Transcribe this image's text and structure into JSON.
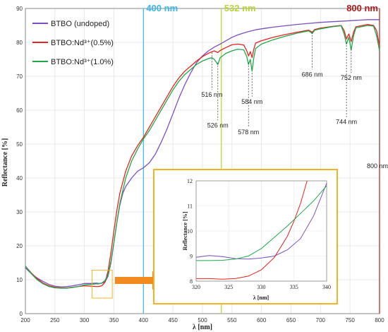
{
  "chart_data": [
    {
      "type": "line",
      "xlabel": "λ [nm]",
      "ylabel": "Reflectance [%]",
      "xlim": [
        200,
        800
      ],
      "ylim": [
        0,
        90
      ],
      "xticks": [
        200,
        250,
        300,
        350,
        400,
        450,
        500,
        550,
        600,
        650,
        700,
        750,
        800
      ],
      "yticks": [
        0,
        10,
        20,
        30,
        40,
        50,
        60,
        70,
        80,
        90
      ],
      "grid": true,
      "legend_position": "top-left",
      "series": [
        {
          "name": "BTBO (undoped)",
          "color": "#7b4fc0",
          "points": [
            [
              200,
              13.5
            ],
            [
              210,
              11.8
            ],
            [
              220,
              10.5
            ],
            [
              230,
              9.5
            ],
            [
              240,
              8.6
            ],
            [
              250,
              8.1
            ],
            [
              260,
              7.9
            ],
            [
              270,
              8.0
            ],
            [
              280,
              8.2
            ],
            [
              290,
              8.5
            ],
            [
              300,
              8.9
            ],
            [
              310,
              8.9
            ],
            [
              320,
              9.0
            ],
            [
              325,
              8.9
            ],
            [
              330,
              9.0
            ],
            [
              335,
              9.4
            ],
            [
              340,
              11.0
            ],
            [
              345,
              15.0
            ],
            [
              350,
              21.0
            ],
            [
              355,
              27.0
            ],
            [
              360,
              32.0
            ],
            [
              365,
              35.5
            ],
            [
              370,
              37.5
            ],
            [
              380,
              40.0
            ],
            [
              390,
              42.0
            ],
            [
              400,
              43.0
            ],
            [
              410,
              44.5
            ],
            [
              420,
              47.0
            ],
            [
              430,
              50.5
            ],
            [
              440,
              54.5
            ],
            [
              450,
              59.0
            ],
            [
              460,
              63.5
            ],
            [
              470,
              67.5
            ],
            [
              480,
              71.0
            ],
            [
              490,
              74.0
            ],
            [
              500,
              76.0
            ],
            [
              510,
              77.5
            ],
            [
              520,
              78.6
            ],
            [
              530,
              79.5
            ],
            [
              540,
              80.5
            ],
            [
              550,
              81.5
            ],
            [
              560,
              82.2
            ],
            [
              570,
              82.8
            ],
            [
              580,
              83.3
            ],
            [
              590,
              83.7
            ],
            [
              600,
              84.0
            ],
            [
              620,
              84.5
            ],
            [
              640,
              84.9
            ],
            [
              660,
              85.3
            ],
            [
              680,
              85.6
            ],
            [
              700,
              85.9
            ],
            [
              720,
              86.1
            ],
            [
              740,
              86.3
            ],
            [
              760,
              86.5
            ],
            [
              780,
              86.7
            ],
            [
              800,
              86.7
            ]
          ]
        },
        {
          "name": "BTBO:Nd³⁺(0.5%)",
          "color": "#e8231f",
          "points": [
            [
              200,
              14.0
            ],
            [
              210,
              12.0
            ],
            [
              220,
              10.3
            ],
            [
              230,
              9.0
            ],
            [
              240,
              8.2
            ],
            [
              250,
              7.8
            ],
            [
              260,
              7.6
            ],
            [
              270,
              7.6
            ],
            [
              280,
              7.8
            ],
            [
              290,
              8.0
            ],
            [
              300,
              8.2
            ],
            [
              310,
              8.1
            ],
            [
              320,
              8.0
            ],
            [
              325,
              8.0
            ],
            [
              330,
              8.3
            ],
            [
              335,
              9.3
            ],
            [
              340,
              12.5
            ],
            [
              345,
              18.0
            ],
            [
              350,
              24.5
            ],
            [
              355,
              30.5
            ],
            [
              360,
              35.5
            ],
            [
              370,
              42.0
            ],
            [
              380,
              46.5
            ],
            [
              390,
              49.5
            ],
            [
              400,
              52.0
            ],
            [
              410,
              55.0
            ],
            [
              420,
              58.0
            ],
            [
              430,
              61.0
            ],
            [
              440,
              64.0
            ],
            [
              450,
              67.0
            ],
            [
              460,
              69.5
            ],
            [
              470,
              71.5
            ],
            [
              480,
              73.0
            ],
            [
              490,
              74.5
            ],
            [
              500,
              75.8
            ],
            [
              510,
              76.8
            ],
            [
              516,
              77.2
            ],
            [
              520,
              77.5
            ],
            [
              526,
              77.0
            ],
            [
              530,
              77.6
            ],
            [
              540,
              78.5
            ],
            [
              550,
              79.3
            ],
            [
              560,
              79.5
            ],
            [
              570,
              79.2
            ],
            [
              575,
              77.5
            ],
            [
              578,
              76.0
            ],
            [
              581,
              77.3
            ],
            [
              584,
              75.5
            ],
            [
              587,
              78.0
            ],
            [
              590,
              79.8
            ],
            [
              600,
              80.5
            ],
            [
              620,
              81.5
            ],
            [
              640,
              82.3
            ],
            [
              660,
              83.0
            ],
            [
              680,
              83.6
            ],
            [
              686,
              83.0
            ],
            [
              690,
              83.8
            ],
            [
              700,
              84.2
            ],
            [
              720,
              84.7
            ],
            [
              735,
              85.0
            ],
            [
              740,
              83.5
            ],
            [
              744,
              81.0
            ],
            [
              748,
              82.5
            ],
            [
              752,
              80.2
            ],
            [
              756,
              83.0
            ],
            [
              760,
              84.6
            ],
            [
              780,
              85.3
            ],
            [
              790,
              85.0
            ],
            [
              795,
              83.5
            ],
            [
              800,
              79.0
            ]
          ]
        },
        {
          "name": "BTBO:Nd³⁺(1.0%)",
          "color": "#1fa84a",
          "points": [
            [
              200,
              14.0
            ],
            [
              210,
              11.8
            ],
            [
              220,
              10.0
            ],
            [
              230,
              8.8
            ],
            [
              240,
              8.0
            ],
            [
              250,
              7.6
            ],
            [
              260,
              7.5
            ],
            [
              270,
              7.5
            ],
            [
              280,
              7.7
            ],
            [
              290,
              8.0
            ],
            [
              300,
              8.5
            ],
            [
              310,
              8.6
            ],
            [
              320,
              8.8
            ],
            [
              325,
              8.8
            ],
            [
              330,
              9.1
            ],
            [
              335,
              9.8
            ],
            [
              340,
              11.5
            ],
            [
              345,
              15.5
            ],
            [
              350,
              21.0
            ],
            [
              355,
              27.0
            ],
            [
              360,
              32.5
            ],
            [
              370,
              40.0
            ],
            [
              380,
              45.0
            ],
            [
              390,
              48.5
            ],
            [
              400,
              51.5
            ],
            [
              410,
              54.0
            ],
            [
              420,
              57.0
            ],
            [
              430,
              60.0
            ],
            [
              440,
              63.0
            ],
            [
              450,
              66.0
            ],
            [
              460,
              68.5
            ],
            [
              470,
              70.5
            ],
            [
              480,
              72.0
            ],
            [
              490,
              73.5
            ],
            [
              500,
              74.5
            ],
            [
              510,
              75.2
            ],
            [
              516,
              75.5
            ],
            [
              520,
              75.0
            ],
            [
              526,
              73.5
            ],
            [
              530,
              75.5
            ],
            [
              540,
              76.8
            ],
            [
              550,
              77.5
            ],
            [
              560,
              78.0
            ],
            [
              570,
              77.8
            ],
            [
              575,
              75.8
            ],
            [
              578,
              73.5
            ],
            [
              581,
              75.0
            ],
            [
              584,
              71.5
            ],
            [
              587,
              75.5
            ],
            [
              590,
              78.2
            ],
            [
              600,
              79.5
            ],
            [
              620,
              80.8
            ],
            [
              640,
              81.8
            ],
            [
              660,
              82.7
            ],
            [
              680,
              83.4
            ],
            [
              686,
              82.6
            ],
            [
              690,
              83.6
            ],
            [
              700,
              84.0
            ],
            [
              720,
              84.6
            ],
            [
              735,
              84.9
            ],
            [
              740,
              82.5
            ],
            [
              744,
              79.5
            ],
            [
              748,
              81.5
            ],
            [
              752,
              77.8
            ],
            [
              756,
              82.0
            ],
            [
              760,
              84.3
            ],
            [
              780,
              85.0
            ],
            [
              790,
              84.8
            ],
            [
              795,
              82.0
            ],
            [
              800,
              77.5
            ]
          ]
        }
      ],
      "vertical_lines": [
        {
          "x": 400,
          "label": "400 nm",
          "color": "#3ab7e6"
        },
        {
          "x": 532,
          "label": "532 nm",
          "color": "#b8d433"
        },
        {
          "x": 800,
          "label": "800 nm",
          "color": "#b01c1c"
        }
      ],
      "annotations": [
        {
          "x": 516,
          "y_top": 77,
          "y_bottom": 66,
          "label": "516 nm"
        },
        {
          "x": 526,
          "y_top": 74,
          "y_bottom": 57,
          "label": "526 nm"
        },
        {
          "x": 578,
          "y_top": 74,
          "y_bottom": 55,
          "label": "578 nm"
        },
        {
          "x": 584,
          "y_top": 71,
          "y_bottom": 64,
          "label": "584 nm"
        },
        {
          "x": 686,
          "y_top": 83,
          "y_bottom": 72,
          "label": "686 nm"
        },
        {
          "x": 744,
          "y_top": 80,
          "y_bottom": 58,
          "label": "744 nm"
        },
        {
          "x": 752,
          "y_top": 78,
          "y_bottom": 71,
          "label": "752 nm"
        },
        {
          "x": 800,
          "y_top": 77,
          "y_bottom": 45,
          "label": "800 nm"
        }
      ],
      "inset_region": {
        "xlim": [
          320,
          340
        ],
        "ylim": [
          7.5,
          12
        ]
      }
    },
    {
      "type": "line",
      "xlabel": "λ [nm]",
      "ylabel": "Reflectance [%]",
      "xlim": [
        320,
        340
      ],
      "ylim": [
        8,
        12
      ],
      "xticks": [
        320,
        325,
        330,
        335,
        340
      ],
      "yticks": [
        8,
        9,
        10,
        11,
        12
      ],
      "series": [
        {
          "name": "BTBO (undoped)",
          "color": "#7b4fc0",
          "points": [
            [
              320,
              8.95
            ],
            [
              322,
              9.02
            ],
            [
              324,
              8.98
            ],
            [
              326,
              8.9
            ],
            [
              328,
              8.88
            ],
            [
              330,
              8.92
            ],
            [
              332,
              9.0
            ],
            [
              334,
              9.25
            ],
            [
              336,
              9.7
            ],
            [
              338,
              10.6
            ],
            [
              340,
              11.9
            ]
          ]
        },
        {
          "name": "BTBO:Nd³⁺(0.5%)",
          "color": "#e8231f",
          "points": [
            [
              320,
              8.1
            ],
            [
              322,
              8.1
            ],
            [
              324,
              8.08
            ],
            [
              326,
              8.1
            ],
            [
              328,
              8.2
            ],
            [
              330,
              8.45
            ],
            [
              332,
              8.95
            ],
            [
              334,
              9.8
            ],
            [
              335,
              10.4
            ],
            [
              336,
              11.1
            ],
            [
              337,
              12.0
            ]
          ]
        },
        {
          "name": "BTBO:Nd³⁺(1.0%)",
          "color": "#1fa84a",
          "points": [
            [
              320,
              8.82
            ],
            [
              322,
              8.82
            ],
            [
              324,
              8.83
            ],
            [
              326,
              8.88
            ],
            [
              328,
              9.0
            ],
            [
              330,
              9.3
            ],
            [
              332,
              9.75
            ],
            [
              334,
              10.2
            ],
            [
              336,
              10.7
            ],
            [
              338,
              11.2
            ],
            [
              340,
              11.8
            ]
          ]
        }
      ]
    }
  ],
  "colors": {
    "inset_border": "#f4b324",
    "arrow": "#f28a20",
    "axis": "#888888",
    "grid": "#e3e3e3"
  }
}
